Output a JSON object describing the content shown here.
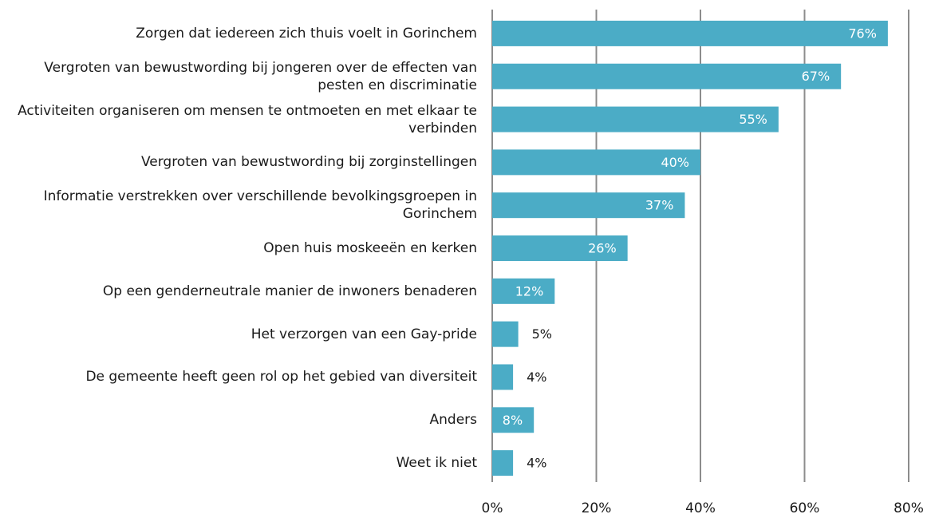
{
  "chart_data": {
    "type": "bar",
    "orientation": "horizontal",
    "categories": [
      "Zorgen dat iedereen zich thuis voelt in Gorinchem",
      "Vergroten van bewustwording bij jongeren over de effecten van pesten en discriminatie",
      "Activiteiten organiseren om mensen te ontmoeten en met elkaar te verbinden",
      "Vergroten van bewustwording bij zorginstellingen",
      "Informatie verstrekken over verschillende bevolkingsgroepen in Gorinchem",
      "Open huis moskeeën en kerken",
      "Op een genderneutrale manier de inwoners benaderen",
      "Het verzorgen van een Gay-pride",
      "De gemeente heeft geen rol op het gebied van diversiteit",
      "Anders",
      "Weet ik niet"
    ],
    "values": [
      76,
      67,
      55,
      40,
      37,
      26,
      12,
      5,
      4,
      8,
      4
    ],
    "value_labels": [
      "76%",
      "67%",
      "55%",
      "40%",
      "37%",
      "26%",
      "12%",
      "5%",
      "4%",
      "8%",
      "4%"
    ],
    "color": "#4bacc6",
    "xlim": [
      0,
      80
    ],
    "xticks": [
      {
        "value": 0,
        "label": "0%"
      },
      {
        "value": 20,
        "label": "20%"
      },
      {
        "value": 40,
        "label": "40%"
      },
      {
        "value": 60,
        "label": "60%"
      },
      {
        "value": 80,
        "label": "80%"
      }
    ],
    "grid": true
  }
}
